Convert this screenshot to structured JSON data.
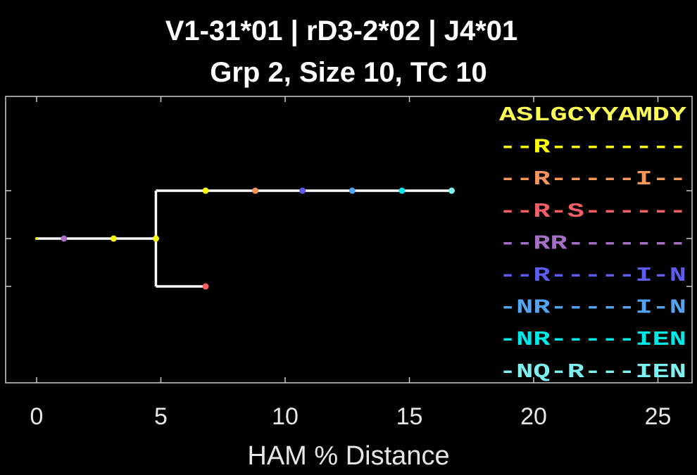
{
  "chart_data": {
    "type": "tree",
    "title": "V1-31*01 | rD3-2*02 | J4*01",
    "subtitle": "Grp 2, Size 10, TC 10",
    "xlabel": "HAM % Distance",
    "xlim": [
      0,
      26
    ],
    "xticks": [
      0,
      5,
      10,
      15,
      20,
      25
    ],
    "xtick_labels": [
      "0",
      "5",
      "10",
      "15",
      "20",
      "25"
    ],
    "grid": false,
    "tree": {
      "root_branch": {
        "x": [
          0,
          4.8
        ],
        "y": 0
      },
      "upper_branch": {
        "x": [
          4.8,
          16.7
        ],
        "y": 1
      },
      "lower_branch": {
        "x": [
          4.8,
          6.8
        ],
        "y": -1
      },
      "split_x": 4.8
    },
    "points": [
      {
        "x": 0,
        "y": 0,
        "color": "#ffff00",
        "size": "small"
      },
      {
        "x": 1.1,
        "y": 0,
        "color": "#a66fc7"
      },
      {
        "x": 3.1,
        "y": 0,
        "color": "#ffff00"
      },
      {
        "x": 4.8,
        "y": 0,
        "color": "#ffff00"
      },
      {
        "x": 6.8,
        "y": 1,
        "color": "#ffff00"
      },
      {
        "x": 8.8,
        "y": 1,
        "color": "#f4955a"
      },
      {
        "x": 10.7,
        "y": 1,
        "color": "#5c5cf0"
      },
      {
        "x": 12.7,
        "y": 1,
        "color": "#54a4f2"
      },
      {
        "x": 14.7,
        "y": 1,
        "color": "#00e8e8"
      },
      {
        "x": 16.7,
        "y": 1,
        "color": "#7ff0f0"
      },
      {
        "x": 6.8,
        "y": -1,
        "color": "#f45f66"
      }
    ],
    "sequences": [
      {
        "text": "ASLGCYYAMDY",
        "color": "#ffff55"
      },
      {
        "text": "--R--------",
        "color": "#ffff00"
      },
      {
        "text": "--R-----I--",
        "color": "#f4955a"
      },
      {
        "text": "--R-S------",
        "color": "#f45f66"
      },
      {
        "text": "--RR-------",
        "color": "#a66fc7"
      },
      {
        "text": "--R-----I-N",
        "color": "#5c5cf0"
      },
      {
        "text": "-NR-----I-N",
        "color": "#54a4f2"
      },
      {
        "text": "-NR-----IEN",
        "color": "#00e8e8"
      },
      {
        "text": "-NQ-R---IEN",
        "color": "#7ff0f0"
      }
    ]
  }
}
